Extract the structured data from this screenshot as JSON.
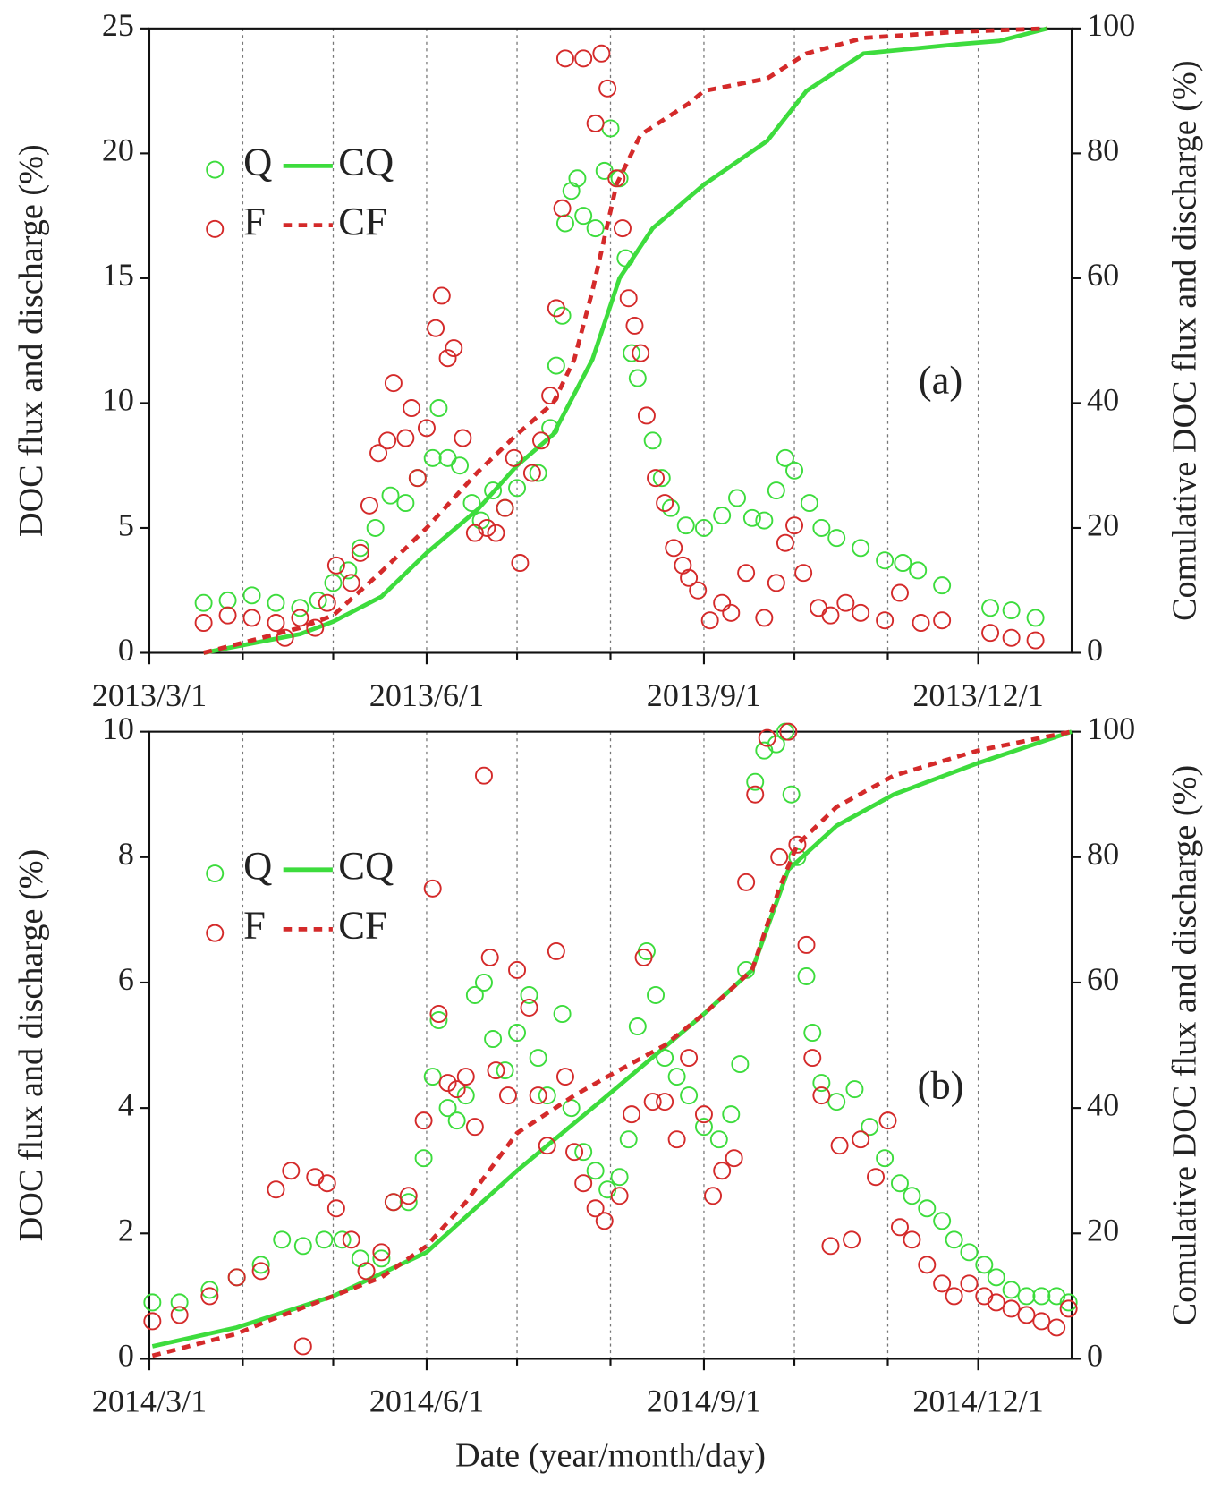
{
  "chart_data": [
    {
      "type": "scatter",
      "annotation": "(a)",
      "ylabel": "DOC flux and discharge (%)",
      "y2label": "Comulative DOC flux and discharge (%)",
      "xlim": [
        "2013/3/1",
        "2014/1/1"
      ],
      "xticks": [
        "2013/3/1",
        "2013/6/1",
        "2013/9/1",
        "2013/12/1"
      ],
      "xminor": [
        "2013/4/1",
        "2013/5/1",
        "2013/7/1",
        "2013/8/1",
        "2013/10/1",
        "2013/11/1"
      ],
      "ylim": [
        0,
        25
      ],
      "yticks": [
        0,
        5,
        10,
        15,
        20,
        25
      ],
      "y2lim": [
        0,
        100
      ],
      "y2ticks": [
        0,
        20,
        40,
        60,
        80,
        100
      ],
      "grid": true,
      "legend": "upper left",
      "series": [
        {
          "name": "Q",
          "mode": "markers",
          "color": "#3ddc3d",
          "x": [
            "2013/3/19",
            "2013/3/27",
            "2013/4/4",
            "2013/4/12",
            "2013/4/20",
            "2013/4/26",
            "2013/5/1",
            "2013/5/6",
            "2013/5/10",
            "2013/5/15",
            "2013/5/20",
            "2013/5/25",
            "2013/5/29",
            "2013/6/3",
            "2013/6/5",
            "2013/6/8",
            "2013/6/12",
            "2013/6/16",
            "2013/6/19",
            "2013/6/23",
            "2013/6/27",
            "2013/7/1",
            "2013/7/8",
            "2013/7/12",
            "2013/7/14",
            "2013/7/16",
            "2013/7/17",
            "2013/7/19",
            "2013/7/21",
            "2013/7/23",
            "2013/7/27",
            "2013/7/30",
            "2013/8/1",
            "2013/8/4",
            "2013/8/6",
            "2013/8/8",
            "2013/8/10",
            "2013/8/15",
            "2013/8/18",
            "2013/8/21",
            "2013/8/26",
            "2013/9/1",
            "2013/9/7",
            "2013/9/12",
            "2013/9/17",
            "2013/9/21",
            "2013/9/25",
            "2013/9/28",
            "2013/10/1",
            "2013/10/6",
            "2013/10/10",
            "2013/10/15",
            "2013/10/23",
            "2013/10/31",
            "2013/11/6",
            "2013/11/11",
            "2013/11/19",
            "2013/12/5",
            "2013/12/12",
            "2013/12/20"
          ],
          "values": [
            2.0,
            2.1,
            2.3,
            2.0,
            1.8,
            2.1,
            2.8,
            3.3,
            4.2,
            5.0,
            6.3,
            6.0,
            7.0,
            7.8,
            9.8,
            7.8,
            7.5,
            6.0,
            5.3,
            6.5,
            5.8,
            6.6,
            7.2,
            9.0,
            11.5,
            13.5,
            17.2,
            18.5,
            19.0,
            17.5,
            17.0,
            19.3,
            21.0,
            19.0,
            15.8,
            12.0,
            11.0,
            8.5,
            7.0,
            5.8,
            5.1,
            5.0,
            5.5,
            6.2,
            5.4,
            5.3,
            6.5,
            7.8,
            7.3,
            6.0,
            5.0,
            4.6,
            4.2,
            3.7,
            3.6,
            3.3,
            2.7,
            1.8,
            1.7,
            1.4
          ]
        },
        {
          "name": "CQ",
          "mode": "lines",
          "axis": "y2",
          "color": "#3ddc3d",
          "x": [
            "2013/3/19",
            "2013/4/4",
            "2013/4/20",
            "2013/5/1",
            "2013/5/17",
            "2013/6/1",
            "2013/6/18",
            "2013/7/1",
            "2013/7/13",
            "2013/7/26",
            "2013/8/4",
            "2013/8/15",
            "2013/9/1",
            "2013/9/22",
            "2013/10/5",
            "2013/10/24",
            "2013/11/25",
            "2013/12/8",
            "2013/12/24"
          ],
          "values": [
            0,
            1.5,
            3,
            5,
            9,
            16,
            23,
            30,
            35,
            47,
            60,
            68,
            75,
            82,
            90,
            96,
            97.5,
            98,
            100
          ]
        },
        {
          "name": "F",
          "mode": "markers",
          "color": "#d42a2a",
          "x": [
            "2013/3/19",
            "2013/3/27",
            "2013/4/4",
            "2013/4/12",
            "2013/4/15",
            "2013/4/20",
            "2013/4/25",
            "2013/4/29",
            "2013/5/2",
            "2013/5/7",
            "2013/5/10",
            "2013/5/13",
            "2013/5/16",
            "2013/5/19",
            "2013/5/21",
            "2013/5/25",
            "2013/5/27",
            "2013/5/29",
            "2013/6/1",
            "2013/6/4",
            "2013/6/6",
            "2013/6/8",
            "2013/6/10",
            "2013/6/13",
            "2013/6/17",
            "2013/6/21",
            "2013/6/24",
            "2013/6/27",
            "2013/6/30",
            "2013/7/2",
            "2013/7/6",
            "2013/7/9",
            "2013/7/12",
            "2013/7/14",
            "2013/7/16",
            "2013/7/17",
            "2013/7/23",
            "2013/7/27",
            "2013/7/29",
            "2013/7/31",
            "2013/8/3",
            "2013/8/5",
            "2013/8/7",
            "2013/8/9",
            "2013/8/11",
            "2013/8/13",
            "2013/8/16",
            "2013/8/19",
            "2013/8/22",
            "2013/8/25",
            "2013/8/27",
            "2013/8/30",
            "2013/9/3",
            "2013/9/7",
            "2013/9/10",
            "2013/9/15",
            "2013/9/21",
            "2013/9/25",
            "2013/9/28",
            "2013/10/1",
            "2013/10/4",
            "2013/10/9",
            "2013/10/13",
            "2013/10/18",
            "2013/10/23",
            "2013/10/31",
            "2013/11/5",
            "2013/11/12",
            "2013/11/19",
            "2013/12/5",
            "2013/12/12",
            "2013/12/20"
          ],
          "values": [
            1.2,
            1.5,
            1.4,
            1.2,
            0.6,
            1.4,
            1.0,
            2.0,
            3.5,
            2.8,
            4.0,
            5.9,
            8.0,
            8.5,
            10.8,
            8.6,
            9.8,
            7.0,
            9.0,
            13.0,
            14.3,
            11.8,
            12.2,
            8.6,
            4.8,
            5.0,
            4.8,
            5.8,
            7.8,
            3.6,
            7.2,
            8.5,
            10.3,
            13.8,
            17.8,
            23.8,
            23.8,
            21.2,
            24.0,
            22.6,
            19.0,
            17.0,
            14.2,
            13.1,
            12.0,
            9.5,
            7.0,
            6.0,
            4.2,
            3.5,
            3.0,
            2.5,
            1.3,
            2.0,
            1.6,
            3.2,
            1.4,
            2.8,
            4.4,
            5.1,
            3.2,
            1.8,
            1.5,
            2.0,
            1.6,
            1.3,
            2.4,
            1.2,
            1.3,
            0.8,
            0.6,
            0.5
          ]
        },
        {
          "name": "CF",
          "mode": "lines",
          "dash": true,
          "axis": "y2",
          "color": "#d42a2a",
          "x": [
            "2013/3/19",
            "2013/4/4",
            "2013/4/20",
            "2013/5/1",
            "2013/5/17",
            "2013/6/1",
            "2013/6/18",
            "2013/7/1",
            "2013/7/13",
            "2013/7/20",
            "2013/7/26",
            "2013/8/3",
            "2013/8/11",
            "2013/8/27",
            "2013/9/1",
            "2013/9/22",
            "2013/10/5",
            "2013/10/24",
            "2013/11/25",
            "2013/12/24"
          ],
          "values": [
            0,
            2,
            4,
            6,
            13,
            20,
            29,
            35,
            40,
            47,
            58,
            75,
            83,
            88,
            90,
            92,
            96,
            98.5,
            99.5,
            100
          ]
        }
      ]
    },
    {
      "type": "scatter",
      "annotation": "(b)",
      "ylabel": "DOC flux and discharge (%)",
      "y2label": "Comulative DOC flux and discharge (%)",
      "xlabel": "Date (year/month/day)",
      "xlim": [
        "2014/3/1",
        "2015/1/1"
      ],
      "xticks": [
        "2014/3/1",
        "2014/6/1",
        "2014/9/1",
        "2014/12/1"
      ],
      "xminor": [
        "2014/4/1",
        "2014/5/1",
        "2014/7/1",
        "2014/8/1",
        "2014/10/1",
        "2014/11/1"
      ],
      "ylim": [
        0,
        10
      ],
      "yticks": [
        0,
        2,
        4,
        6,
        8,
        10
      ],
      "y2lim": [
        0,
        100
      ],
      "y2ticks": [
        0,
        20,
        40,
        60,
        80,
        100
      ],
      "grid": true,
      "legend": "upper left",
      "series": [
        {
          "name": "Q",
          "mode": "markers",
          "color": "#3ddc3d",
          "x": [
            "2014/3/2",
            "2014/3/11",
            "2014/3/21",
            "2014/3/30",
            "2014/4/7",
            "2014/4/14",
            "2014/4/21",
            "2014/4/28",
            "2014/5/4",
            "2014/5/10",
            "2014/5/17",
            "2014/5/21",
            "2014/5/26",
            "2014/5/31",
            "2014/6/3",
            "2014/6/5",
            "2014/6/8",
            "2014/6/11",
            "2014/6/14",
            "2014/6/17",
            "2014/6/20",
            "2014/6/23",
            "2014/6/27",
            "2014/7/1",
            "2014/7/5",
            "2014/7/8",
            "2014/7/11",
            "2014/7/16",
            "2014/7/19",
            "2014/7/23",
            "2014/7/27",
            "2014/7/31",
            "2014/8/4",
            "2014/8/7",
            "2014/8/10",
            "2014/8/13",
            "2014/8/16",
            "2014/8/19",
            "2014/8/23",
            "2014/8/27",
            "2014/9/1",
            "2014/9/6",
            "2014/9/10",
            "2014/9/13",
            "2014/9/15",
            "2014/9/18",
            "2014/9/21",
            "2014/9/25",
            "2014/9/28",
            "2014/9/30",
            "2014/10/2",
            "2014/10/5",
            "2014/10/7",
            "2014/10/10",
            "2014/10/15",
            "2014/10/21",
            "2014/10/26",
            "2014/10/31",
            "2014/11/5",
            "2014/11/9",
            "2014/11/14",
            "2014/11/19",
            "2014/11/23",
            "2014/11/28",
            "2014/12/3",
            "2014/12/7",
            "2014/12/12",
            "2014/12/17",
            "2014/12/22",
            "2014/12/27",
            "2014/12/31"
          ],
          "values": [
            0.9,
            0.9,
            1.1,
            1.3,
            1.5,
            1.9,
            1.8,
            1.9,
            1.9,
            1.6,
            1.6,
            2.5,
            2.5,
            3.2,
            4.5,
            5.4,
            4.0,
            3.8,
            4.2,
            5.8,
            6.0,
            5.1,
            4.6,
            5.2,
            5.8,
            4.8,
            4.2,
            5.5,
            4.0,
            3.3,
            3.0,
            2.7,
            2.9,
            3.5,
            5.3,
            6.5,
            5.8,
            4.8,
            4.5,
            4.2,
            3.7,
            3.5,
            3.9,
            4.7,
            6.2,
            9.2,
            9.7,
            9.8,
            10.0,
            9.0,
            8.0,
            6.1,
            5.2,
            4.4,
            4.1,
            4.3,
            3.7,
            3.2,
            2.8,
            2.6,
            2.4,
            2.2,
            1.9,
            1.7,
            1.5,
            1.3,
            1.1,
            1.0,
            1.0,
            1.0,
            0.9
          ]
        },
        {
          "name": "CQ",
          "mode": "lines",
          "axis": "y2",
          "color": "#3ddc3d",
          "x": [
            "2014/3/2",
            "2014/3/30",
            "2014/5/1",
            "2014/6/1",
            "2014/7/1",
            "2014/7/31",
            "2014/9/1",
            "2014/9/17",
            "2014/9/29",
            "2014/10/15",
            "2014/11/3",
            "2014/12/1",
            "2015/1/1"
          ],
          "values": [
            2,
            5,
            10,
            17,
            30,
            42,
            55,
            62,
            78,
            85,
            90,
            95,
            100
          ]
        },
        {
          "name": "F",
          "mode": "markers",
          "color": "#d42a2a",
          "x": [
            "2014/3/2",
            "2014/3/11",
            "2014/3/21",
            "2014/3/30",
            "2014/4/7",
            "2014/4/12",
            "2014/4/17",
            "2014/4/21",
            "2014/4/25",
            "2014/4/29",
            "2014/5/2",
            "2014/5/7",
            "2014/5/12",
            "2014/5/17",
            "2014/5/21",
            "2014/5/26",
            "2014/5/31",
            "2014/6/3",
            "2014/6/5",
            "2014/6/8",
            "2014/6/11",
            "2014/6/14",
            "2014/6/17",
            "2014/6/20",
            "2014/6/22",
            "2014/6/24",
            "2014/6/28",
            "2014/7/1",
            "2014/7/5",
            "2014/7/8",
            "2014/7/11",
            "2014/7/14",
            "2014/7/17",
            "2014/7/20",
            "2014/7/23",
            "2014/7/27",
            "2014/7/30",
            "2014/8/4",
            "2014/8/8",
            "2014/8/12",
            "2014/8/15",
            "2014/8/19",
            "2014/8/23",
            "2014/8/27",
            "2014/9/1",
            "2014/9/4",
            "2014/9/7",
            "2014/9/11",
            "2014/9/15",
            "2014/9/18",
            "2014/9/22",
            "2014/9/26",
            "2014/9/29",
            "2014/10/2",
            "2014/10/5",
            "2014/10/7",
            "2014/10/10",
            "2014/10/13",
            "2014/10/16",
            "2014/10/20",
            "2014/10/23",
            "2014/10/28",
            "2014/11/1",
            "2014/11/5",
            "2014/11/9",
            "2014/11/14",
            "2014/11/19",
            "2014/11/23",
            "2014/11/28",
            "2014/12/3",
            "2014/12/7",
            "2014/12/12",
            "2014/12/17",
            "2014/12/22",
            "2014/12/27",
            "2014/12/31"
          ],
          "values": [
            0.6,
            0.7,
            1.0,
            1.3,
            1.4,
            2.7,
            3.0,
            0.2,
            2.9,
            2.8,
            2.4,
            1.9,
            1.4,
            1.7,
            2.5,
            2.6,
            3.8,
            7.5,
            5.5,
            4.4,
            4.3,
            4.5,
            3.7,
            9.3,
            6.4,
            4.6,
            4.2,
            6.2,
            5.6,
            4.2,
            3.4,
            6.5,
            4.5,
            3.3,
            2.8,
            2.4,
            2.2,
            2.6,
            3.9,
            6.4,
            4.1,
            4.1,
            3.5,
            4.8,
            3.9,
            2.6,
            3.0,
            3.2,
            7.6,
            9.0,
            9.9,
            8.0,
            10.0,
            8.2,
            6.6,
            4.8,
            4.2,
            1.8,
            3.4,
            1.9,
            3.5,
            2.9,
            3.8,
            2.1,
            1.9,
            1.5,
            1.2,
            1.0,
            1.2,
            1.0,
            0.9,
            0.8,
            0.7,
            0.6,
            0.5,
            0.8
          ]
        },
        {
          "name": "CF",
          "mode": "lines",
          "dash": true,
          "axis": "y2",
          "color": "#d42a2a",
          "x": [
            "2014/3/2",
            "2014/3/30",
            "2014/4/9",
            "2014/5/1",
            "2014/5/17",
            "2014/6/1",
            "2014/6/14",
            "2014/7/1",
            "2014/7/20",
            "2014/7/31",
            "2014/8/19",
            "2014/9/1",
            "2014/9/17",
            "2014/9/26",
            "2014/10/2",
            "2014/10/15",
            "2014/11/3",
            "2014/12/1",
            "2015/1/1"
          ],
          "values": [
            0.5,
            4,
            6,
            10,
            13,
            18,
            25,
            36,
            42,
            45,
            50,
            55,
            62,
            75,
            82,
            88,
            93,
            97,
            100
          ]
        }
      ]
    }
  ]
}
